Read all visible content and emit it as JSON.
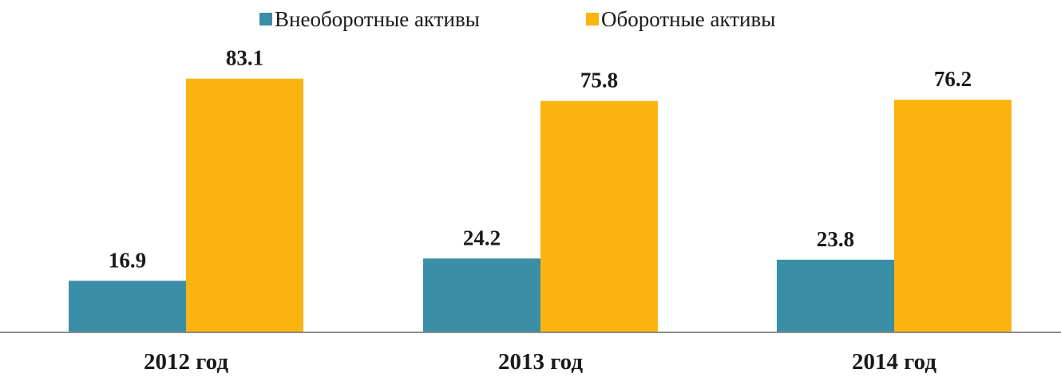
{
  "chart_data": {
    "type": "bar",
    "categories": [
      "2012 год",
      "2013 год",
      "2014 год"
    ],
    "series": [
      {
        "name": "Внеоборотные активы",
        "values": [
          16.9,
          24.2,
          23.8
        ],
        "color": "#3a8ea6"
      },
      {
        "name": "Оборотные активы",
        "values": [
          83.1,
          75.8,
          76.2
        ],
        "color": "#fab410"
      }
    ],
    "ylim": [
      0,
      90
    ],
    "grid": false,
    "legend_position": "top",
    "data_labels": true,
    "title": "",
    "xlabel": "",
    "ylabel": ""
  }
}
